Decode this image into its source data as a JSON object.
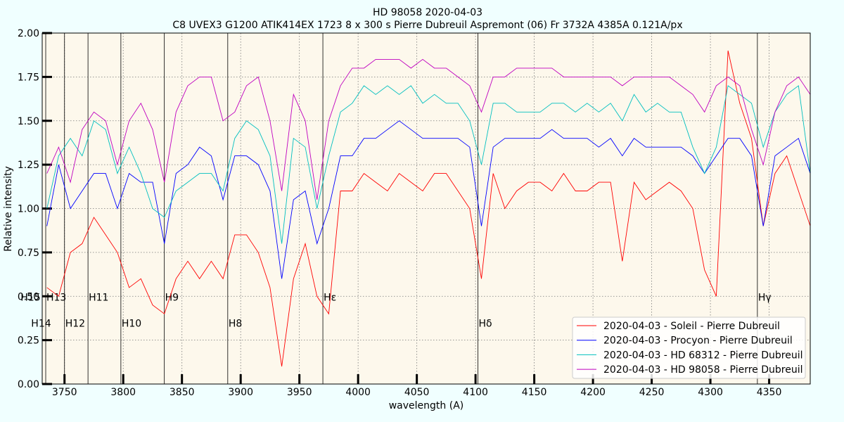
{
  "chart_data": {
    "type": "line",
    "title": "HD 98058 2020-04-03",
    "subtitle": "C8 UVEX3 G1200 ATIK414EX 1723 8 x 300 s Pierre Dubreuil Aspremont (06) Fr 3732A 4385A 0.121A/px",
    "x_label": "wavelength (A)",
    "y_label": "Relative intensity",
    "xlim": [
      3731,
      4385
    ],
    "ylim": [
      0,
      2
    ],
    "xticks": [
      3750,
      3800,
      3850,
      3900,
      3950,
      4000,
      4050,
      4100,
      4150,
      4200,
      4250,
      4300,
      4350
    ],
    "yticks": [
      {
        "value": 0,
        "label": "0.00"
      },
      {
        "value": 0.25,
        "label": "0.25"
      },
      {
        "value": 0.5,
        "label": "0.50"
      },
      {
        "value": 0.75,
        "label": "0.75"
      },
      {
        "value": 1,
        "label": "1.00"
      },
      {
        "value": 1.25,
        "label": "1.25"
      },
      {
        "value": 1.5,
        "label": "1.50"
      },
      {
        "value": 1.75,
        "label": "1.75"
      },
      {
        "value": 2,
        "label": "2.00"
      }
    ],
    "grid": true,
    "legend_position": "lower right",
    "lines": [
      {
        "label": "H15",
        "x": 3712
      },
      {
        "label": "H14",
        "x": 3721
      },
      {
        "label": "H13",
        "x": 3734
      },
      {
        "label": "H12",
        "x": 3750
      },
      {
        "label": "H11",
        "x": 3770
      },
      {
        "label": "H10",
        "x": 3798
      },
      {
        "label": "H9",
        "x": 3835
      },
      {
        "label": "H8",
        "x": 3889
      },
      {
        "label": "Hε",
        "x": 3970
      },
      {
        "label": "Hδ",
        "x": 4102
      },
      {
        "label": "Hγ",
        "x": 4340
      }
    ],
    "x": [
      3735,
      3745,
      3755,
      3765,
      3775,
      3785,
      3795,
      3805,
      3815,
      3825,
      3835,
      3845,
      3855,
      3865,
      3875,
      3885,
      3895,
      3905,
      3915,
      3925,
      3935,
      3945,
      3955,
      3965,
      3975,
      3985,
      3995,
      4005,
      4015,
      4025,
      4035,
      4045,
      4055,
      4065,
      4075,
      4085,
      4095,
      4105,
      4115,
      4125,
      4135,
      4145,
      4155,
      4165,
      4175,
      4185,
      4195,
      4205,
      4215,
      4225,
      4235,
      4245,
      4255,
      4265,
      4275,
      4285,
      4295,
      4305,
      4315,
      4325,
      4335,
      4345,
      4355,
      4365,
      4375,
      4385
    ],
    "series": [
      {
        "name": "2020-04-03 - Soleil - Pierre Dubreuil",
        "color": "#ff0000",
        "values": [
          0.55,
          0.5,
          0.75,
          0.8,
          0.95,
          0.85,
          0.75,
          0.55,
          0.6,
          0.45,
          0.4,
          0.6,
          0.7,
          0.6,
          0.7,
          0.6,
          0.85,
          0.85,
          0.75,
          0.55,
          0.1,
          0.6,
          0.8,
          0.5,
          0.4,
          1.1,
          1.1,
          1.2,
          1.15,
          1.1,
          1.2,
          1.15,
          1.1,
          1.2,
          1.2,
          1.1,
          1.0,
          0.6,
          1.2,
          1.0,
          1.1,
          1.15,
          1.15,
          1.1,
          1.2,
          1.1,
          1.1,
          1.15,
          1.15,
          0.7,
          1.15,
          1.05,
          1.1,
          1.15,
          1.1,
          1.0,
          0.65,
          0.5,
          1.9,
          1.6,
          1.4,
          0.9,
          1.2,
          1.3,
          1.1,
          0.9
        ]
      },
      {
        "name": "2020-04-03 - Procyon - Pierre Dubreuil",
        "color": "#0000ff",
        "values": [
          0.9,
          1.25,
          1.0,
          1.1,
          1.2,
          1.2,
          1.0,
          1.2,
          1.15,
          1.15,
          0.8,
          1.2,
          1.25,
          1.35,
          1.3,
          1.05,
          1.3,
          1.3,
          1.25,
          1.1,
          0.6,
          1.05,
          1.1,
          0.8,
          1.0,
          1.3,
          1.3,
          1.4,
          1.4,
          1.45,
          1.5,
          1.45,
          1.4,
          1.4,
          1.4,
          1.4,
          1.35,
          0.9,
          1.35,
          1.4,
          1.4,
          1.4,
          1.4,
          1.45,
          1.4,
          1.4,
          1.4,
          1.35,
          1.4,
          1.3,
          1.4,
          1.35,
          1.35,
          1.35,
          1.35,
          1.3,
          1.2,
          1.3,
          1.4,
          1.4,
          1.3,
          0.9,
          1.3,
          1.35,
          1.4,
          1.2
        ]
      },
      {
        "name": "2020-04-03 - HD 68312 - Pierre Dubreuil",
        "color": "#00bfbf",
        "values": [
          1.0,
          1.3,
          1.4,
          1.3,
          1.5,
          1.45,
          1.2,
          1.35,
          1.2,
          1.0,
          0.95,
          1.1,
          1.15,
          1.2,
          1.2,
          1.1,
          1.4,
          1.5,
          1.45,
          1.3,
          0.8,
          1.4,
          1.35,
          1.0,
          1.3,
          1.55,
          1.6,
          1.7,
          1.65,
          1.7,
          1.65,
          1.7,
          1.6,
          1.65,
          1.6,
          1.6,
          1.5,
          1.25,
          1.6,
          1.6,
          1.55,
          1.55,
          1.55,
          1.6,
          1.6,
          1.55,
          1.6,
          1.55,
          1.6,
          1.5,
          1.65,
          1.55,
          1.6,
          1.55,
          1.55,
          1.35,
          1.2,
          1.35,
          1.7,
          1.65,
          1.6,
          1.35,
          1.55,
          1.65,
          1.7,
          1.2
        ]
      },
      {
        "name": "2020-04-03 - HD 98058 - Pierre Dubreuil",
        "color": "#bf00bf",
        "values": [
          1.2,
          1.35,
          1.15,
          1.45,
          1.55,
          1.5,
          1.25,
          1.5,
          1.6,
          1.45,
          1.15,
          1.55,
          1.7,
          1.75,
          1.75,
          1.5,
          1.55,
          1.7,
          1.75,
          1.5,
          1.1,
          1.65,
          1.5,
          1.05,
          1.5,
          1.7,
          1.8,
          1.8,
          1.85,
          1.85,
          1.85,
          1.8,
          1.85,
          1.8,
          1.8,
          1.75,
          1.7,
          1.55,
          1.75,
          1.75,
          1.8,
          1.8,
          1.8,
          1.8,
          1.75,
          1.75,
          1.75,
          1.75,
          1.75,
          1.7,
          1.75,
          1.75,
          1.75,
          1.75,
          1.7,
          1.65,
          1.55,
          1.7,
          1.75,
          1.7,
          1.45,
          1.25,
          1.55,
          1.7,
          1.75,
          1.65
        ]
      }
    ]
  }
}
